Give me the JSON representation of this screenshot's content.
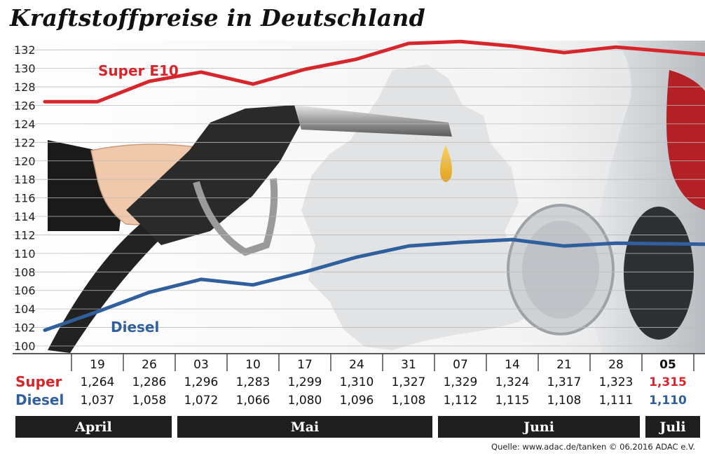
{
  "title": "Kraftstoffpreise in Deutschland",
  "source": "Quelle: www.adac.de/tanken  © 06.2016  ADAC e.V.",
  "colors": {
    "super": "#d7262b",
    "diesel": "#2f5f9c",
    "bar": "#1e1e1e"
  },
  "table": {
    "super_label": "Super",
    "diesel_label": "Diesel"
  },
  "months": [
    "April",
    "Mai",
    "Juni",
    "Juli"
  ],
  "chart_data": {
    "type": "line",
    "categories": [
      "19",
      "26",
      "03",
      "10",
      "17",
      "24",
      "31",
      "07",
      "14",
      "21",
      "28",
      "05"
    ],
    "yticks": [
      "100",
      "102",
      "104",
      "106",
      "108",
      "110",
      "112",
      "114",
      "116",
      "118",
      "120",
      "122",
      "124",
      "126",
      "128",
      "130",
      "132"
    ],
    "ylim": [
      100,
      133
    ],
    "grid": true,
    "series": [
      {
        "name": "Super E10",
        "values": [
          126.4,
          128.6,
          129.6,
          128.3,
          129.9,
          131.0,
          132.7,
          132.9,
          132.4,
          131.7,
          132.3,
          131.5
        ],
        "labels": [
          "1,264",
          "1,286",
          "1,296",
          "1,283",
          "1,299",
          "1,310",
          "1,327",
          "1,329",
          "1,324",
          "1,317",
          "1,323",
          "1,315"
        ]
      },
      {
        "name": "Diesel",
        "values": [
          103.7,
          105.8,
          107.2,
          106.6,
          108.0,
          109.6,
          110.8,
          111.2,
          111.5,
          110.8,
          111.1,
          111.0
        ],
        "labels": [
          "1,037",
          "1,058",
          "1,072",
          "1,066",
          "1,080",
          "1,096",
          "1,108",
          "1,112",
          "1,115",
          "1,108",
          "1,111",
          "1,110"
        ]
      }
    ]
  }
}
